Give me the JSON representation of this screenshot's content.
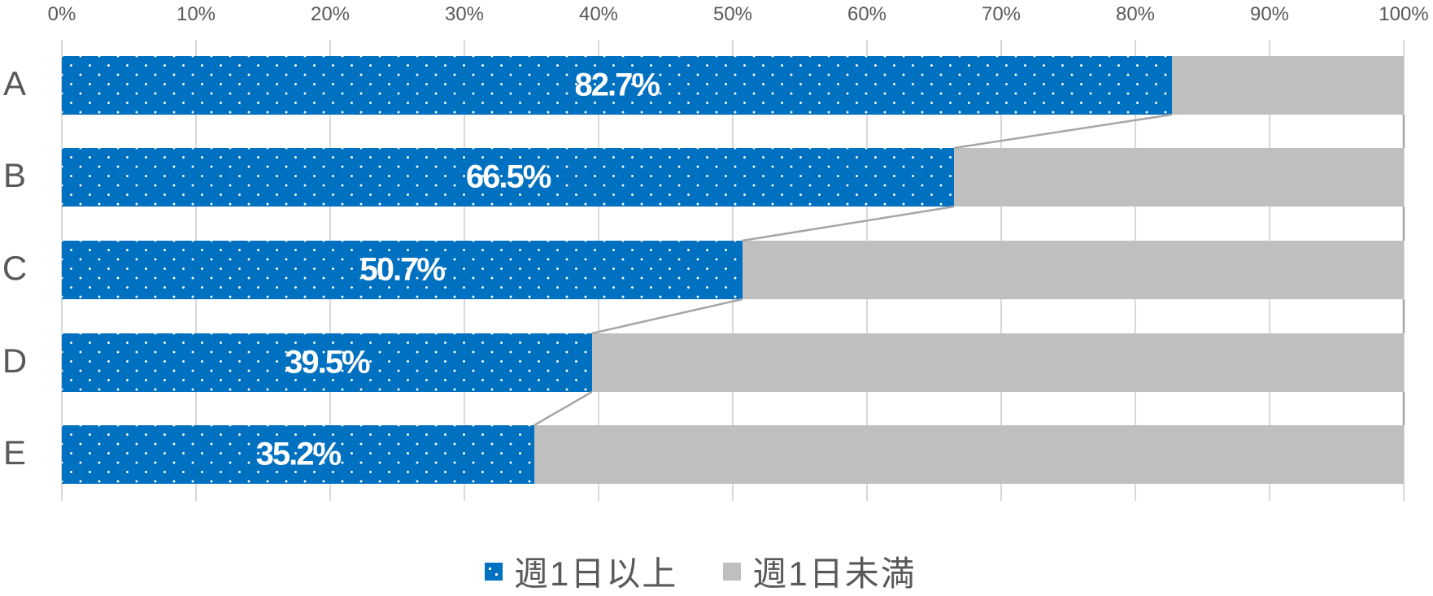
{
  "chart_data": {
    "type": "bar",
    "orientation": "horizontal",
    "stacked": "percent",
    "title": "",
    "xlabel": "",
    "ylabel": "",
    "categories": [
      "A",
      "B",
      "C",
      "D",
      "E"
    ],
    "series": [
      {
        "name": "週1日以上",
        "color": "#0070C0",
        "pattern": "dots",
        "values": [
          82.7,
          66.5,
          50.7,
          39.5,
          35.2
        ]
      },
      {
        "name": "週1日未満",
        "color": "#BFBFBF",
        "values": [
          17.3,
          33.5,
          49.3,
          60.5,
          64.8
        ]
      }
    ],
    "data_labels": [
      "82.7%",
      "66.5%",
      "50.7%",
      "39.5%",
      "35.2%"
    ],
    "x_ticks": [
      "0%",
      "10%",
      "20%",
      "30%",
      "40%",
      "50%",
      "60%",
      "70%",
      "80%",
      "90%",
      "100%"
    ],
    "xlim": [
      0,
      100
    ],
    "x_axis_position": "top",
    "grid": true,
    "series_lines": true,
    "legend_position": "bottom"
  },
  "legend": {
    "items": [
      {
        "label": "週1日以上",
        "color": "#0070C0"
      },
      {
        "label": "週1日未満",
        "color": "#BFBFBF"
      }
    ]
  }
}
